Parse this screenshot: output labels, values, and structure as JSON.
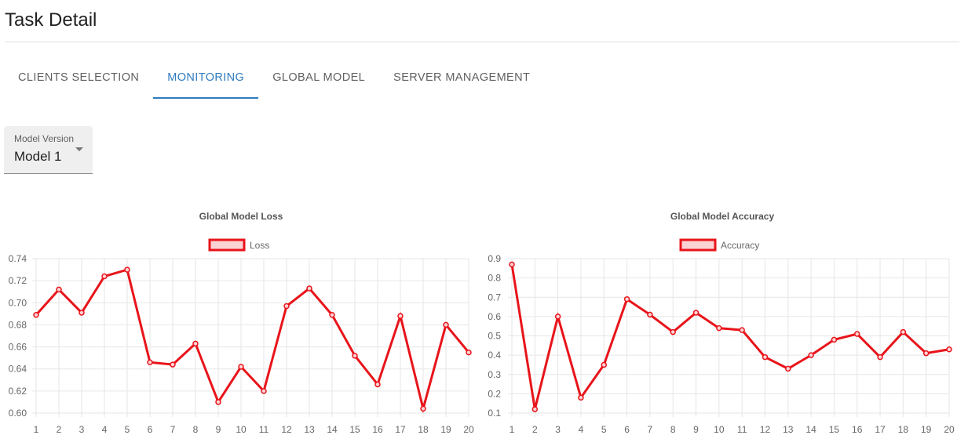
{
  "page": {
    "title": "Task Detail"
  },
  "tabs": [
    {
      "label": "CLIENTS SELECTION",
      "active": false
    },
    {
      "label": "MONITORING",
      "active": true
    },
    {
      "label": "GLOBAL MODEL",
      "active": false
    },
    {
      "label": "SERVER MANAGEMENT",
      "active": false
    }
  ],
  "model_select": {
    "label": "Model Version",
    "value": "Model 1"
  },
  "colors": {
    "accent": "#2f7bbf",
    "series_line": "#e8141a",
    "series_fill": "#fbd3d5",
    "grid": "#e6e6e6"
  },
  "chart_data": [
    {
      "type": "line",
      "title": "Global Model Loss",
      "legend": "Loss",
      "legend_position": "top",
      "grid": true,
      "x": [
        1,
        2,
        3,
        4,
        5,
        6,
        7,
        8,
        9,
        10,
        11,
        12,
        13,
        14,
        15,
        16,
        17,
        18,
        19,
        20
      ],
      "series": [
        {
          "name": "Loss",
          "values": [
            0.689,
            0.712,
            0.691,
            0.724,
            0.73,
            0.646,
            0.644,
            0.663,
            0.61,
            0.642,
            0.62,
            0.697,
            0.713,
            0.689,
            0.652,
            0.626,
            0.688,
            0.604,
            0.68,
            0.655
          ]
        }
      ],
      "ylim": [
        0.6,
        0.74
      ],
      "yticks": [
        "0.60",
        "0.62",
        "0.64",
        "0.66",
        "0.68",
        "0.70",
        "0.72",
        "0.74"
      ]
    },
    {
      "type": "line",
      "title": "Global Model Accuracy",
      "legend": "Accuracy",
      "legend_position": "top",
      "grid": true,
      "x": [
        1,
        2,
        3,
        4,
        5,
        6,
        7,
        8,
        9,
        10,
        11,
        12,
        13,
        14,
        15,
        16,
        17,
        18,
        19,
        20
      ],
      "series": [
        {
          "name": "Accuracy",
          "values": [
            0.87,
            0.12,
            0.6,
            0.18,
            0.35,
            0.69,
            0.61,
            0.52,
            0.62,
            0.54,
            0.53,
            0.39,
            0.33,
            0.4,
            0.48,
            0.51,
            0.39,
            0.52,
            0.41,
            0.43
          ]
        }
      ],
      "ylim": [
        0.1,
        0.9
      ],
      "yticks": [
        "0.1",
        "0.2",
        "0.3",
        "0.4",
        "0.5",
        "0.6",
        "0.7",
        "0.8",
        "0.9"
      ]
    }
  ]
}
